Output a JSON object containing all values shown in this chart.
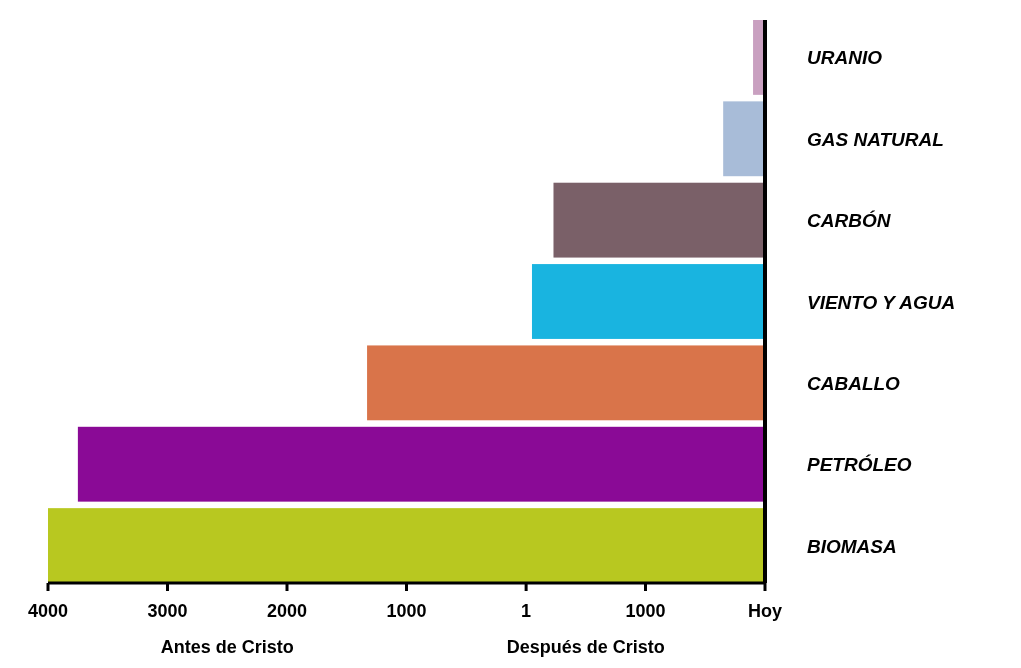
{
  "chart_data": {
    "type": "bar",
    "orientation": "horizontal",
    "categories": [
      "URANIO",
      "GAS NATURAL",
      "CARBÓN",
      "VIENTO Y AGUA",
      "CABALLO",
      "PETRÓLEO",
      "BIOMASA"
    ],
    "base": [
      1900,
      1650,
      230,
      50,
      -1330,
      -3750,
      -4000
    ],
    "values": [
      100,
      350,
      1770,
      1950,
      3330,
      5750,
      6000
    ],
    "colors": [
      "#c9a0c0",
      "#a8bcd8",
      "#7a6068",
      "#19b4e0",
      "#d9744a",
      "#8a0a96",
      "#b8c820"
    ],
    "xlim": [
      -4000,
      2000
    ],
    "xticks": [
      {
        "value": -4000,
        "label": "4000"
      },
      {
        "value": -3000,
        "label": "3000"
      },
      {
        "value": -2000,
        "label": "2000"
      },
      {
        "value": -1000,
        "label": "1000"
      },
      {
        "value": 1,
        "label": "1"
      },
      {
        "value": 1000,
        "label": "1000"
      },
      {
        "value": 2000,
        "label": "Hoy"
      }
    ],
    "annotations": [
      "Antes de Cristo",
      "Después de Cristo"
    ],
    "grid": false
  }
}
